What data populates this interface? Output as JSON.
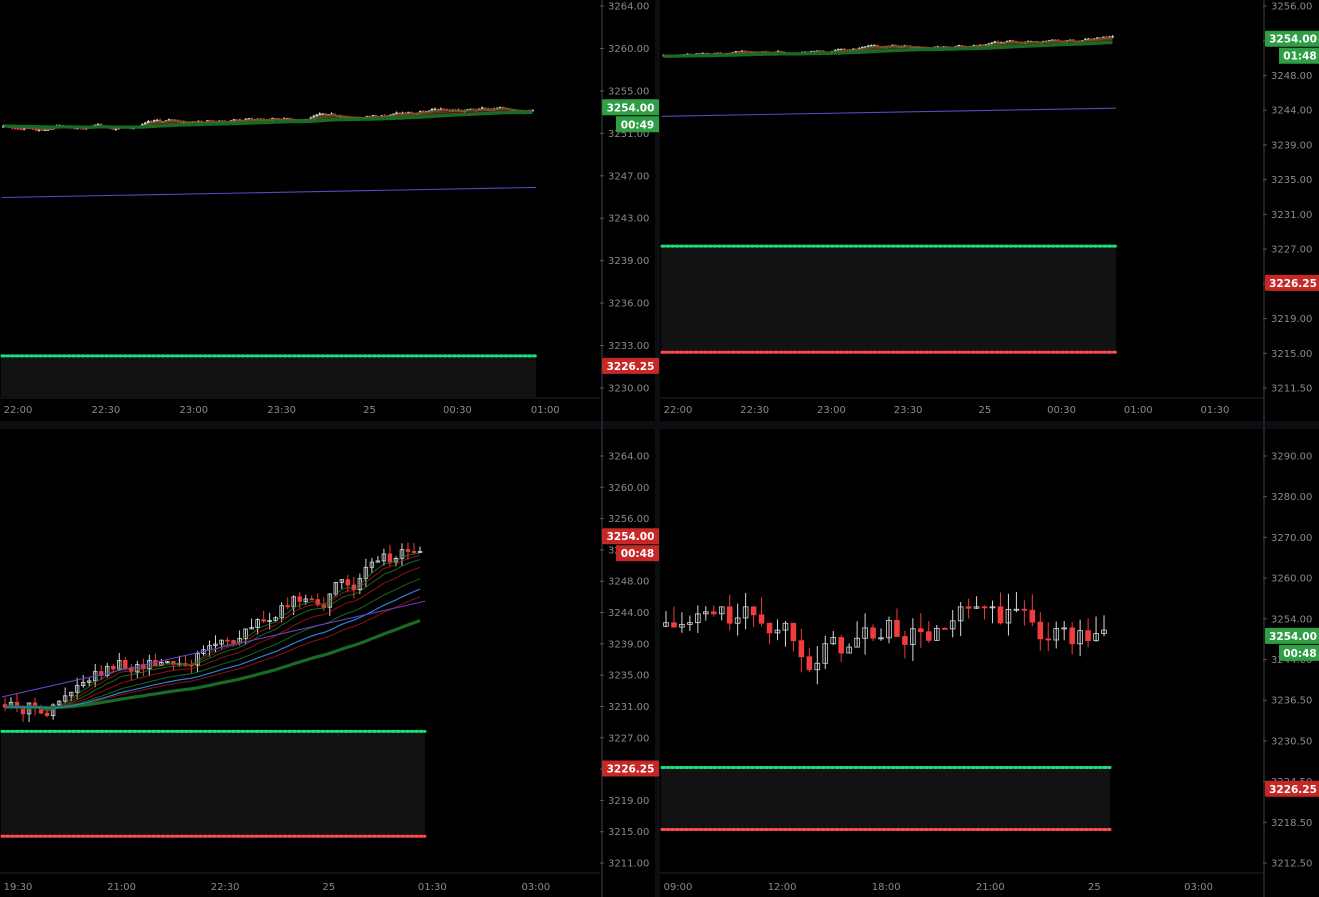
{
  "colors": {
    "background": "#000000",
    "divider": "#1f2329",
    "axis_text": "#8a8a8a",
    "up_candle": "#d8d8d8",
    "down_candle": "#f03c3c",
    "badge_green": "#2f9e44",
    "badge_red": "#c62828",
    "support_dots": "#19e07a",
    "resistance_dots": "#ff4b4b",
    "vwap_line": "#6a3fc0",
    "ribbon_green": "#1f8a2f",
    "ribbon_red": "#c01818",
    "blue_ma": "#2d7fd6"
  },
  "chart_data": [
    {
      "id": "top-left",
      "type": "candlestick",
      "y_ticks": [
        "3264.00",
        "3260.00",
        "3255.00",
        "3251.00",
        "3247.00",
        "3243.00",
        "3239.00",
        "3236.00",
        "3233.00",
        "3230.00"
      ],
      "ylim": [
        3225,
        3264.5
      ],
      "x_ticks": [
        "22:00",
        "22:30",
        "23:00",
        "23:30",
        "25",
        "00:30",
        "01:00"
      ],
      "price_badge": {
        "value": "3254.00",
        "color": "green"
      },
      "timer_badge": {
        "value": "00:49",
        "color": "green"
      },
      "level_badge": {
        "value": "3226.25",
        "color": "red"
      },
      "support_level": 3229.2,
      "resistance_level": null,
      "candles": {
        "start": 3252.0,
        "end": 3254.0,
        "low": 3246.0,
        "high": 3255.5,
        "count": 180
      },
      "has_ribbon": true,
      "has_blue_ma": false,
      "vwap": [
        3245.0,
        3246.0
      ]
    },
    {
      "id": "top-right",
      "type": "candlestick",
      "y_ticks": [
        "3256.00",
        "3252.00",
        "3248.00",
        "3244.00",
        "3239.00",
        "3235.00",
        "3231.00",
        "3227.00",
        "3223.00",
        "3219.00",
        "3215.00",
        "3211.50"
      ],
      "ylim": [
        3210,
        3258.5
      ],
      "x_ticks": [
        "22:00",
        "22:30",
        "23:00",
        "23:30",
        "25",
        "00:30",
        "01:00",
        "01:30"
      ],
      "price_badge": {
        "value": "3254.00",
        "color": "green"
      },
      "timer_badge": {
        "value": "01:48",
        "color": "green"
      },
      "level_badge": {
        "value": "3226.25",
        "color": "red"
      },
      "support_level": 3228.6,
      "resistance_level": 3215.6,
      "candles": {
        "start": 3252.0,
        "end": 3254.0,
        "low": 3246.0,
        "high": 3255.5,
        "count": 150
      },
      "has_ribbon": true,
      "has_blue_ma": false,
      "vwap": [
        3244.5,
        3245.5
      ]
    },
    {
      "id": "bottom-left",
      "type": "candlestick",
      "y_ticks": [
        "3264.00",
        "3260.00",
        "3256.00",
        "3252.00",
        "3248.00",
        "3244.00",
        "3239.00",
        "3235.00",
        "3231.00",
        "3227.00",
        "3223.00",
        "3219.00",
        "3215.00",
        "3211.00"
      ],
      "ylim": [
        3210,
        3265
      ],
      "x_ticks": [
        "19:30",
        "21:00",
        "22:30",
        "25",
        "01:30",
        "03:00"
      ],
      "price_badge": {
        "value": "3254.00",
        "color": "red"
      },
      "timer_badge": {
        "value": "00:48",
        "color": "red"
      },
      "level_badge": {
        "value": "3226.25",
        "color": "red"
      },
      "support_level": 3228.5,
      "resistance_level": 3214.8,
      "candles": {
        "start": 3232.0,
        "end": 3254.0,
        "low": 3230.0,
        "high": 3260.0,
        "count": 70
      },
      "has_ribbon": true,
      "has_blue_ma": true,
      "vwap": [
        3233.0,
        3245.5
      ]
    },
    {
      "id": "bottom-right",
      "type": "candlestick",
      "y_ticks": [
        "3290.00",
        "3280.00",
        "3270.00",
        "3260.00",
        "3254.00",
        "3244.00",
        "3236.50",
        "3230.50",
        "3224.50",
        "3218.50",
        "3212.50"
      ],
      "ylim": [
        3205,
        3292
      ],
      "x_ticks": [
        "09:00",
        "12:00",
        "18:00",
        "21:00",
        "25",
        "03:00"
      ],
      "price_badge": {
        "value": "3254.00",
        "color": "green"
      },
      "timer_badge": {
        "value": "00:48",
        "color": "green"
      },
      "level_badge": {
        "value": "3226.25",
        "color": "red"
      },
      "support_level": 3226.8,
      "resistance_level": 3214.0,
      "candles": {
        "start": 3256.0,
        "end": 3254.0,
        "low": 3214.0,
        "high": 3260.0,
        "count": 56
      },
      "has_ribbon": false,
      "has_blue_ma": false,
      "vwap": null
    }
  ]
}
